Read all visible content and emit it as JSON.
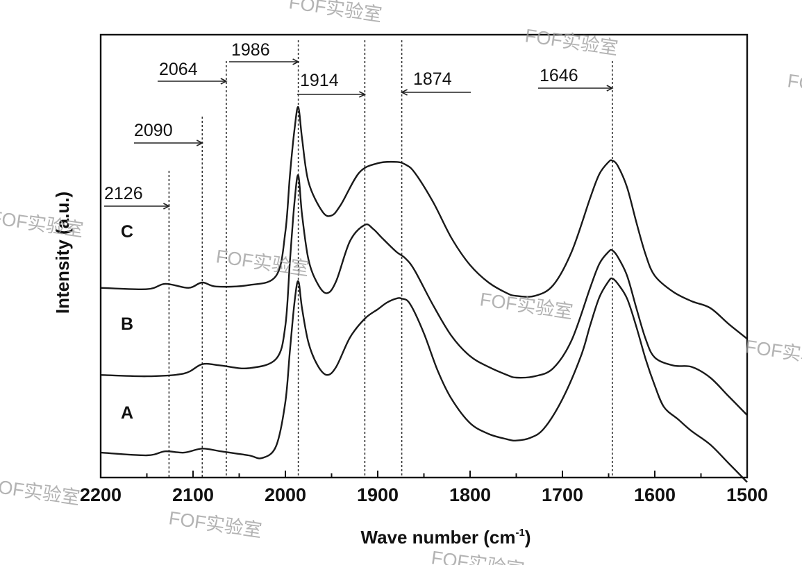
{
  "chart_data": {
    "type": "line",
    "xlabel_main": "Wave number (cm",
    "xlabel_sup": "-1",
    "xlabel_tail": ")",
    "ylabel": "Intensity (a.u.)",
    "xlim": [
      2200,
      1500
    ],
    "x_reversed": true,
    "x_ticks": [
      2200,
      2100,
      2000,
      1900,
      1800,
      1700,
      1600,
      1500
    ],
    "y_ticks_shown": false,
    "grid": false,
    "peak_markers": [
      {
        "label": "2126",
        "x": 2126
      },
      {
        "label": "2090",
        "x": 2090
      },
      {
        "label": "2064",
        "x": 2064
      },
      {
        "label": "1986",
        "x": 1986
      },
      {
        "label": "1914",
        "x": 1914
      },
      {
        "label": "1874",
        "x": 1874
      },
      {
        "label": "1646",
        "x": 1646
      }
    ],
    "series": [
      {
        "name": "C",
        "x": [
          2200,
          2150,
          2130,
          2105,
          2090,
          2075,
          2040,
          2010,
          2000,
          1995,
          1990,
          1986,
          1982,
          1975,
          1960,
          1950,
          1940,
          1920,
          1900,
          1880,
          1870,
          1860,
          1840,
          1820,
          1800,
          1780,
          1760,
          1750,
          1730,
          1710,
          1690,
          1670,
          1660,
          1650,
          1646,
          1640,
          1630,
          1620,
          1610,
          1600,
          1580,
          1560,
          1540,
          1520,
          1500
        ],
        "values": [
          1.53,
          1.52,
          1.56,
          1.53,
          1.57,
          1.54,
          1.55,
          1.62,
          1.95,
          2.38,
          2.72,
          2.88,
          2.65,
          2.32,
          2.1,
          2.07,
          2.15,
          2.39,
          2.46,
          2.47,
          2.45,
          2.39,
          2.17,
          1.9,
          1.7,
          1.57,
          1.49,
          1.47,
          1.47,
          1.55,
          1.8,
          2.2,
          2.38,
          2.47,
          2.48,
          2.44,
          2.28,
          2.02,
          1.78,
          1.62,
          1.5,
          1.43,
          1.38,
          1.26,
          1.15
        ]
      },
      {
        "name": "B",
        "x": [
          2200,
          2150,
          2110,
          2090,
          2070,
          2040,
          2010,
          2000,
          1995,
          1990,
          1986,
          1982,
          1975,
          1965,
          1955,
          1945,
          1930,
          1914,
          1905,
          1895,
          1880,
          1870,
          1860,
          1840,
          1820,
          1800,
          1780,
          1760,
          1750,
          1730,
          1710,
          1690,
          1670,
          1660,
          1650,
          1646,
          1640,
          1630,
          1620,
          1610,
          1600,
          1580,
          1560,
          1540,
          1520,
          1500
        ],
        "values": [
          0.88,
          0.87,
          0.89,
          0.96,
          0.95,
          0.93,
          1.0,
          1.25,
          1.74,
          2.18,
          2.37,
          2.08,
          1.74,
          1.56,
          1.49,
          1.58,
          1.88,
          2.0,
          1.97,
          1.9,
          1.8,
          1.75,
          1.66,
          1.4,
          1.17,
          1.02,
          0.94,
          0.88,
          0.86,
          0.87,
          0.93,
          1.14,
          1.53,
          1.71,
          1.8,
          1.81,
          1.76,
          1.62,
          1.38,
          1.15,
          1.01,
          0.95,
          0.94,
          0.86,
          0.72,
          0.58
        ]
      },
      {
        "name": "A",
        "x": [
          2200,
          2150,
          2130,
          2110,
          2090,
          2070,
          2040,
          2025,
          2010,
          2000,
          1995,
          1990,
          1986,
          1982,
          1975,
          1965,
          1955,
          1945,
          1930,
          1914,
          1900,
          1890,
          1880,
          1874,
          1865,
          1850,
          1835,
          1820,
          1800,
          1780,
          1760,
          1750,
          1735,
          1720,
          1700,
          1680,
          1670,
          1660,
          1650,
          1646,
          1640,
          1630,
          1620,
          1610,
          1600,
          1590,
          1575,
          1560,
          1540,
          1520,
          1500
        ],
        "values": [
          0.3,
          0.28,
          0.31,
          0.3,
          0.33,
          0.31,
          0.28,
          0.26,
          0.35,
          0.68,
          1.07,
          1.43,
          1.58,
          1.38,
          1.12,
          0.95,
          0.88,
          0.94,
          1.16,
          1.3,
          1.37,
          1.42,
          1.45,
          1.45,
          1.41,
          1.19,
          0.91,
          0.7,
          0.52,
          0.44,
          0.4,
          0.39,
          0.41,
          0.48,
          0.7,
          1.02,
          1.25,
          1.46,
          1.58,
          1.6,
          1.56,
          1.45,
          1.24,
          1.0,
          0.8,
          0.64,
          0.55,
          0.46,
          0.36,
          0.22,
          0.08
        ]
      }
    ]
  },
  "watermarks": [
    "FOF实验室",
    "FOF实验室",
    "FOF实验室",
    "FOF实验室",
    "FOF实验室",
    "FOF实验室",
    "FOF实验室",
    "FOF实验室",
    "FOF实验室",
    "FOF实验室"
  ],
  "colors": {
    "line": "#1a1a1a",
    "watermark": "#9a9a9a"
  }
}
